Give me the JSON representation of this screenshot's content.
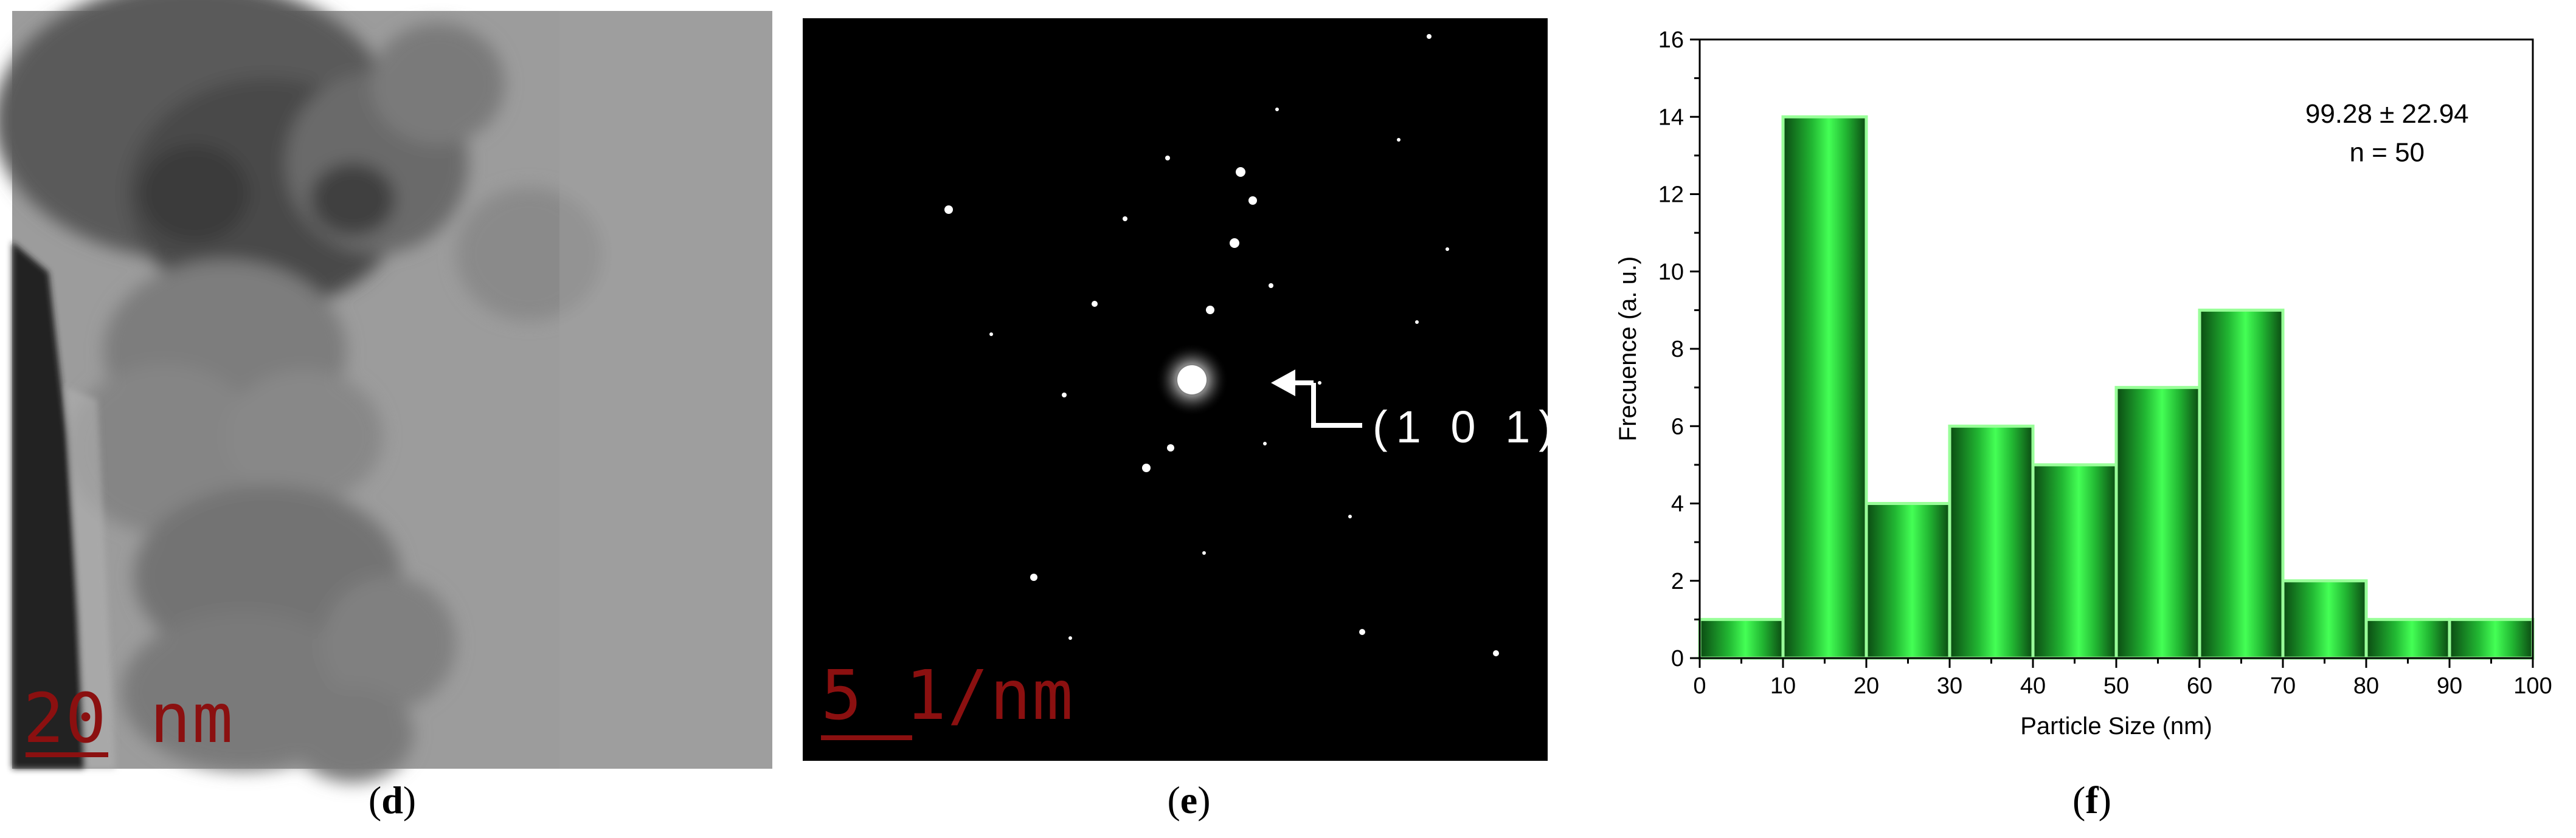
{
  "panels": {
    "d": {
      "label": "d",
      "scale_bar_text": "20 nm"
    },
    "e": {
      "label": "e",
      "scale_bar_text": "5 1/nm",
      "annotation": "(1 0 1)"
    },
    "f": {
      "label": "f"
    }
  },
  "chart_data": {
    "type": "bar",
    "title": "",
    "xlabel": "Particle Size (nm)",
    "ylabel": "Frecuence (a. u.)",
    "bin_edges": [
      0,
      10,
      20,
      30,
      40,
      50,
      60,
      70,
      80,
      90,
      100
    ],
    "values": [
      1,
      14,
      4,
      6,
      5,
      7,
      9,
      2,
      1,
      1
    ],
    "xlim": [
      0,
      100
    ],
    "ylim": [
      0,
      16
    ],
    "xticks": [
      "0",
      "10",
      "20",
      "30",
      "40",
      "50",
      "60",
      "70",
      "80",
      "90",
      "100"
    ],
    "yticks": [
      "0",
      "2",
      "4",
      "6",
      "8",
      "10",
      "12",
      "14",
      "16"
    ],
    "annotations": [
      "99.28 ± 22.94",
      "n = 50"
    ],
    "bar_color": "#33ee44",
    "bar_edge_color": "#99ff99"
  }
}
